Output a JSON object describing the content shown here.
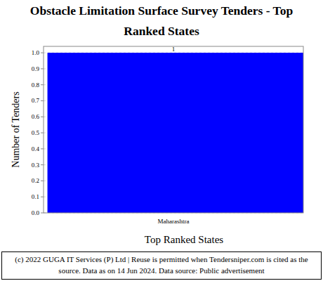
{
  "chart_data": {
    "type": "bar",
    "title": "Obstacle Limitation Surface Survey Tenders - Top Ranked States",
    "x_label": "Top Ranked States",
    "y_label": "Number of Tenders",
    "categories": [
      "Maharashtra"
    ],
    "values": [
      1
    ],
    "color": "#0000ff",
    "ylim": [
      0,
      1.04
    ],
    "yticks": [
      {
        "value": 0,
        "label": "0.0"
      },
      {
        "value": 0.1,
        "label": "0.1"
      },
      {
        "value": 0.2,
        "label": "0.2"
      },
      {
        "value": 0.3,
        "label": "0.3"
      },
      {
        "value": 0.4,
        "label": "0.4"
      },
      {
        "value": 0.5,
        "label": "0.5"
      },
      {
        "value": 0.6,
        "label": "0.6"
      },
      {
        "value": 0.7,
        "label": "0.7"
      },
      {
        "value": 0.8,
        "label": "0.8"
      },
      {
        "value": 0.9,
        "label": "0.9"
      },
      {
        "value": 1.0,
        "label": "1.0"
      }
    ],
    "grid": true,
    "data_labels": true,
    "footer": "(c) 2022 GUGA IT Services (P) Ltd | Reuse is permitted when Tendersniper.com is cited as the source. Data as on 14 Jun 2024. Data source: Public advertisement"
  }
}
